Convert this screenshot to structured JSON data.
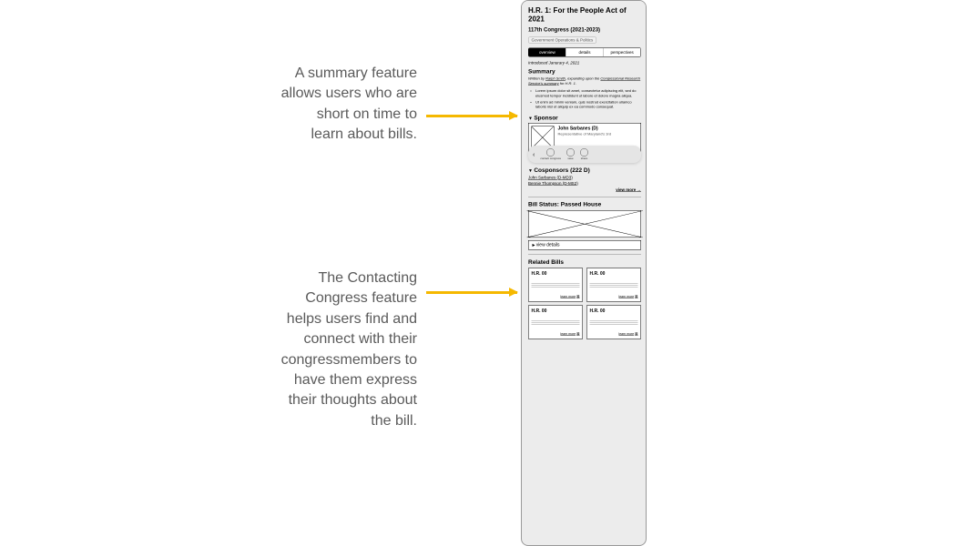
{
  "annotations": {
    "a1": "A summary feature allows users who are short on time to learn about bills.",
    "a2": "The Contacting Congress feature helps users find and connect with their congressmembers to have them express their thoughts about the bill."
  },
  "bill": {
    "title": "H.R. 1: For the People Act of 2021",
    "congress": "117th Congress (2021-2023)",
    "tag": "Government Operations & Politics",
    "introduced": "Introduced Janurary 4, 2021"
  },
  "tabs": {
    "overview": "overview",
    "details": "details",
    "perspectives": "perspectives"
  },
  "summary": {
    "heading": "Summary",
    "byline_prefix": "Written by ",
    "byline_author": "Ralph Smith",
    "byline_mid": ", expanding upon the ",
    "byline_source": "Congressional Research Service's summary",
    "byline_suffix": " for H.R. 1.",
    "bullets": [
      "Lorem ipsum dolor sit amet, consectetur adipiscing elit, sed do eiusmod tempor incididunt ut labore et dolore magna aliqua.",
      "Ut enim ad minim veniam, quis nostrud exercitation ullamco laboris nisi ut aliquip ex ea commodo consequat."
    ]
  },
  "sponsor": {
    "heading": "Sponsor",
    "name": "John Sarbanes (D)",
    "role": "Representative of Maryland's 3rd"
  },
  "toolbar": {
    "contact": "contact congress",
    "save": "save",
    "share": "share"
  },
  "cosponsors": {
    "heading": "Cosponsors (222 D)",
    "list": [
      "John Sarbanes (D-MD3)",
      "Bennie Thompson (D-MS2)"
    ],
    "more": "view more"
  },
  "status": {
    "heading": "Bill Status: Passed House",
    "details_label": "view details"
  },
  "related": {
    "heading": "Related Bills",
    "cards": [
      {
        "title": "H.R. 00",
        "learn": "learn more"
      },
      {
        "title": "H.R. 00",
        "learn": "learn more"
      },
      {
        "title": "H.R. 00",
        "learn": "learn more"
      },
      {
        "title": "H.R. 00",
        "learn": "learn more"
      }
    ]
  },
  "colors": {
    "arrow": "#f5b800",
    "frame_bg": "#ececec",
    "text_muted": "#5a5a5a"
  }
}
